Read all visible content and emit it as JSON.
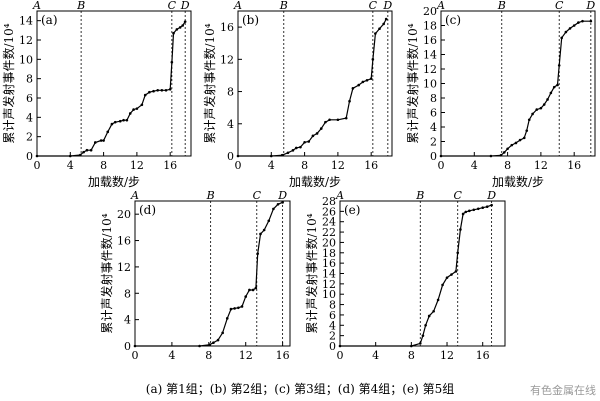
{
  "caption": "(a) 第1组；(b) 第2组；(c) 第3组；(d) 第4组；(e) 第5组",
  "watermark": "有色金属在线",
  "chart_data": [
    {
      "type": "line",
      "label": "(a)",
      "xlabel": "加载数/步",
      "ylabel": "累计声发射事件数/10⁴",
      "xlim": [
        0,
        18.5
      ],
      "ylim": [
        0,
        15
      ],
      "xticks": [
        0,
        4,
        8,
        12,
        16
      ],
      "yticks": [
        0,
        2,
        4,
        6,
        8,
        10,
        12,
        14
      ],
      "markers": [
        {
          "name": "A",
          "x": 0
        },
        {
          "name": "B",
          "x": 5.3
        },
        {
          "name": "C",
          "x": 16.2
        },
        {
          "name": "D",
          "x": 17.8
        }
      ],
      "x": [
        0,
        4,
        5.2,
        5.6,
        6,
        6.5,
        7,
        7.7,
        8,
        8.5,
        9,
        9.4,
        10,
        10.4,
        10.8,
        11.2,
        11.6,
        12,
        12.6,
        13,
        13.5,
        14,
        14.5,
        15,
        15.5,
        16,
        16.2,
        16.4,
        16.8,
        17.2,
        17.5,
        17.8
      ],
      "y": [
        0,
        0,
        0.1,
        0.4,
        0.6,
        0.6,
        1.4,
        1.6,
        1.6,
        2.5,
        3.3,
        3.5,
        3.6,
        3.7,
        3.7,
        4.4,
        4.8,
        4.9,
        5.3,
        6.3,
        6.6,
        6.7,
        6.8,
        6.8,
        6.8,
        6.9,
        9.7,
        12.7,
        13.1,
        13.3,
        13.5,
        13.9
      ]
    },
    {
      "type": "line",
      "label": "(b)",
      "xlabel": "加载数/步",
      "ylabel": "累计声发射事件数/10⁴",
      "xlim": [
        0,
        18.5
      ],
      "ylim": [
        0,
        18
      ],
      "xticks": [
        0,
        4,
        8,
        12,
        16
      ],
      "yticks": [
        0,
        4,
        8,
        12,
        16
      ],
      "markers": [
        {
          "name": "A",
          "x": 0
        },
        {
          "name": "B",
          "x": 5.5
        },
        {
          "name": "C",
          "x": 16.2
        },
        {
          "name": "D",
          "x": 18
        }
      ],
      "x": [
        0,
        4,
        5.3,
        6,
        6.6,
        7,
        7.5,
        8,
        8.5,
        9,
        9.5,
        10,
        10.5,
        11,
        12,
        13,
        13.4,
        13.8,
        14.5,
        15,
        15.5,
        16,
        16.2,
        16.5,
        17,
        17.5,
        17.8
      ],
      "y": [
        0,
        0,
        0.1,
        0.4,
        0.7,
        1,
        1.1,
        1.7,
        1.8,
        2.5,
        2.8,
        3.4,
        4.2,
        4.5,
        4.5,
        4.7,
        6.8,
        8.4,
        8.8,
        9.2,
        9.4,
        9.6,
        12,
        15.2,
        15.8,
        16.4,
        17
      ]
    },
    {
      "type": "line",
      "label": "(c)",
      "xlabel": "加载数/步",
      "ylabel": "累计声发射事件数/10⁴",
      "xlim": [
        0,
        18.5
      ],
      "ylim": [
        0,
        20
      ],
      "xticks": [
        0,
        4,
        8,
        12,
        16
      ],
      "yticks": [
        0,
        2,
        4,
        6,
        8,
        10,
        12,
        14,
        16,
        18,
        20
      ],
      "markers": [
        {
          "name": "A",
          "x": 0
        },
        {
          "name": "B",
          "x": 7.3
        },
        {
          "name": "C",
          "x": 14.2
        },
        {
          "name": "D",
          "x": 18
        }
      ],
      "x": [
        0,
        6,
        7.2,
        7.6,
        8,
        8.5,
        9,
        9.5,
        10,
        10.3,
        10.6,
        11,
        11.5,
        12,
        12.4,
        12.8,
        13.2,
        13.6,
        14,
        14.2,
        14.5,
        15,
        15.5,
        16,
        16.5,
        17,
        18
      ],
      "y": [
        0,
        0,
        0.1,
        0.5,
        1,
        1.5,
        1.8,
        2.2,
        2.5,
        3.5,
        5,
        5.8,
        6.4,
        6.6,
        7.1,
        7.8,
        8.7,
        9.5,
        9.8,
        12.5,
        16.3,
        17.1,
        17.6,
        18,
        18.4,
        18.6,
        18.6
      ]
    },
    {
      "type": "line",
      "label": "(d)",
      "xlabel": "",
      "ylabel": "累计声发射事件数/10⁴",
      "xlim": [
        0,
        16.8
      ],
      "ylim": [
        0,
        22
      ],
      "xticks": [
        0,
        4,
        8,
        12,
        16
      ],
      "yticks": [
        0,
        4,
        8,
        12,
        16,
        20
      ],
      "markers": [
        {
          "name": "A",
          "x": 0
        },
        {
          "name": "B",
          "x": 8.2
        },
        {
          "name": "C",
          "x": 13.2
        },
        {
          "name": "D",
          "x": 16
        }
      ],
      "x": [
        0,
        7,
        8.1,
        8.5,
        9,
        9.5,
        10,
        10.4,
        10.8,
        11.2,
        11.6,
        12,
        12.4,
        12.8,
        13.1,
        13.3,
        13.6,
        14,
        14.5,
        15,
        15.5,
        16
      ],
      "y": [
        0,
        0,
        0.2,
        0.5,
        0.9,
        2,
        4.2,
        5.6,
        5.7,
        5.8,
        6,
        7.5,
        8.5,
        8.5,
        8.8,
        14,
        17,
        17.6,
        19,
        20.8,
        21.5,
        21.8
      ]
    },
    {
      "type": "line",
      "label": "(e)",
      "xlabel": "",
      "ylabel": "累计声发射事件数/10⁴",
      "xlim": [
        0,
        18.5
      ],
      "ylim": [
        0,
        28
      ],
      "xticks": [
        0,
        4,
        8,
        12,
        16
      ],
      "yticks": [
        0,
        2,
        4,
        6,
        8,
        10,
        12,
        14,
        16,
        18,
        20,
        22,
        24,
        26,
        28
      ],
      "markers": [
        {
          "name": "A",
          "x": 0
        },
        {
          "name": "B",
          "x": 9
        },
        {
          "name": "C",
          "x": 13.2
        },
        {
          "name": "D",
          "x": 17
        }
      ],
      "x": [
        0,
        8,
        9,
        9.3,
        9.6,
        10,
        10.5,
        11,
        11.5,
        12,
        12.5,
        13,
        13.2,
        13.5,
        13.8,
        14.1,
        14.5,
        15,
        15.5,
        16,
        16.5,
        17
      ],
      "y": [
        0,
        0,
        0.5,
        2,
        4,
        5.8,
        6.7,
        8.9,
        11.8,
        13.2,
        13.8,
        14.4,
        18,
        22.5,
        25.5,
        25.9,
        26.1,
        26.3,
        26.5,
        26.7,
        26.9,
        27.2
      ]
    }
  ]
}
